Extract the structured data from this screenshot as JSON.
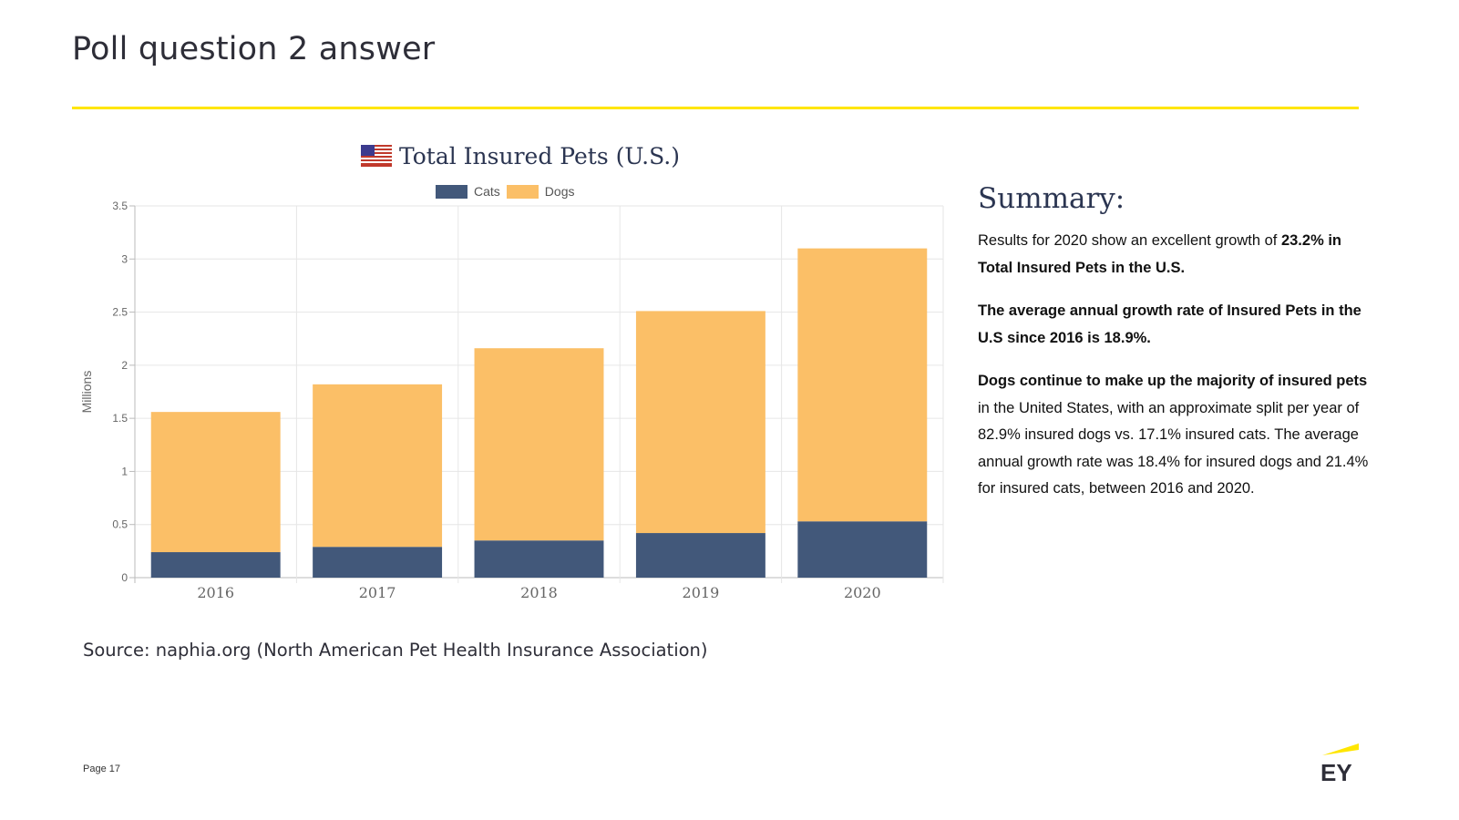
{
  "slide": {
    "title": "Poll question 2 answer",
    "page_label": "Page 17",
    "source": "Source:  naphia.org (North American Pet Health Insurance Association)",
    "accent_color": "#ffe600",
    "logo": {
      "text": "EY",
      "color": "#2e2e38",
      "icon": "ey-logo-icon"
    }
  },
  "summary": {
    "heading": "Summary:",
    "p1_text": "Results for 2020 show an excellent growth of",
    "p1_bold": "23.2% in Total Insured Pets in the U.S.",
    "p2_bold": "The average annual growth rate of Insured Pets in the U.S since 2016 is 18.9%.",
    "p3_bold": "Dogs continue to make up the majority of insured pets",
    "p3_text": " in the United States, with an approximate split per year of 82.9% insured dogs vs. 17.1% insured cats. The average annual growth rate was 18.4% for insured dogs and 21.4% for insured cats, between 2016 and 2020."
  },
  "chart_data": {
    "type": "bar",
    "stacked": true,
    "title": "Total Insured Pets (U.S.)",
    "title_icon": "us-flag-icon",
    "xlabel": "",
    "ylabel": "Millions",
    "categories": [
      "2016",
      "2017",
      "2018",
      "2019",
      "2020"
    ],
    "series": [
      {
        "name": "Cats",
        "color": "#42587a",
        "values": [
          0.24,
          0.29,
          0.35,
          0.42,
          0.53
        ]
      },
      {
        "name": "Dogs",
        "color": "#fbbf67",
        "values": [
          1.32,
          1.53,
          1.81,
          2.09,
          2.57
        ]
      }
    ],
    "ylim": [
      0,
      3.5
    ],
    "yticks": [
      0,
      0.5,
      1,
      1.5,
      2,
      2.5,
      3,
      3.5
    ],
    "ytick_labels": [
      "0",
      "0.5",
      "1",
      "1.5",
      "2",
      "2.5",
      "3",
      "3.5"
    ],
    "grid": true,
    "legend_position": "top-center"
  }
}
